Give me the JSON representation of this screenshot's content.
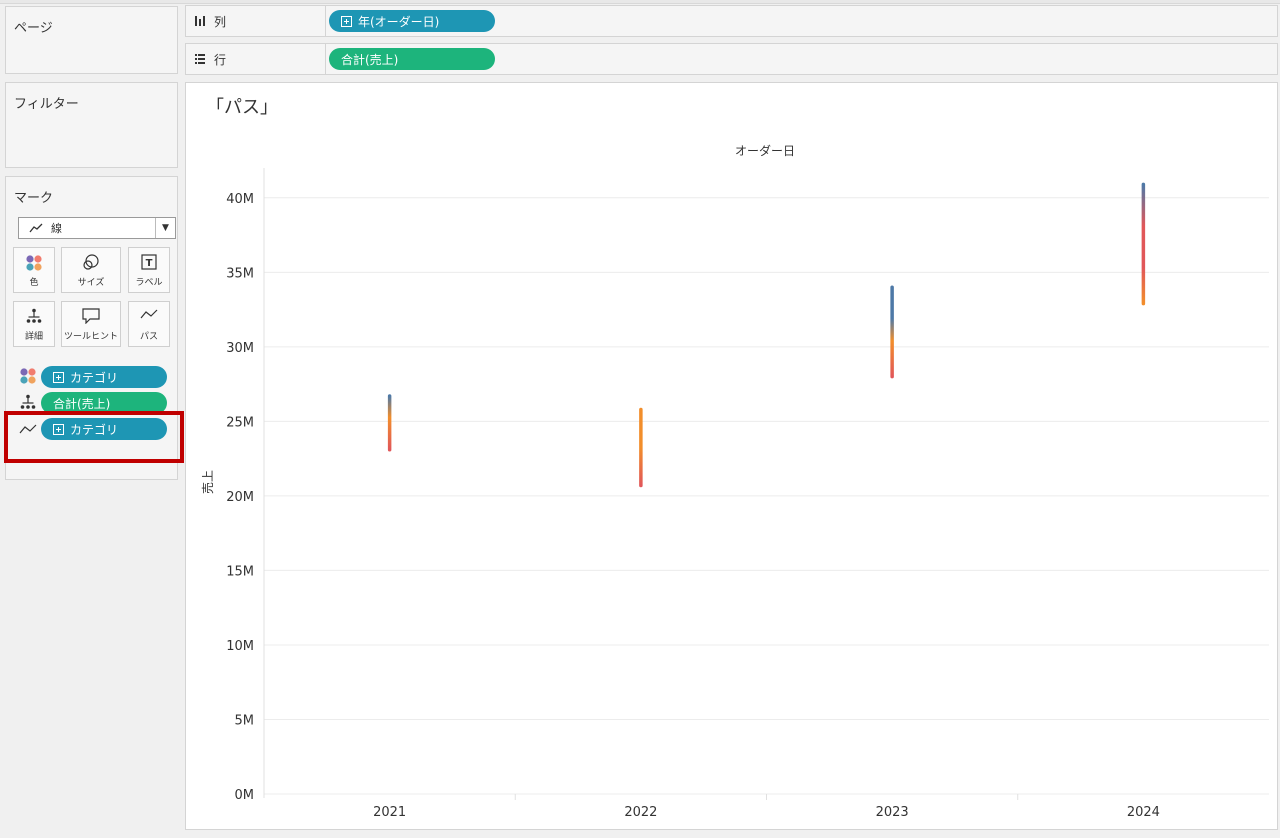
{
  "pages_card": {
    "title": "ページ"
  },
  "filters_card": {
    "title": "フィルター"
  },
  "marks_card": {
    "title": "マーク",
    "mark_type": "線",
    "buttons": [
      {
        "label": "色",
        "icon": "color-dots-icon"
      },
      {
        "label": "サイズ",
        "icon": "size-icon"
      },
      {
        "label": "ラベル",
        "icon": "label-icon"
      },
      {
        "label": "詳細",
        "icon": "detail-icon"
      },
      {
        "label": "ツールヒント",
        "icon": "tooltip-icon"
      },
      {
        "label": "パス",
        "icon": "path-icon"
      }
    ],
    "fields": [
      {
        "role": "color",
        "label": "カテゴリ",
        "pill_color": "#1e96b4"
      },
      {
        "role": "detail",
        "label": "合計(売上)",
        "pill_color": "#1db47c"
      },
      {
        "role": "path",
        "label": "カテゴリ",
        "pill_color": "#1e96b4"
      }
    ]
  },
  "columns_shelf": {
    "label": "列",
    "pill": "年(オーダー日)"
  },
  "rows_shelf": {
    "label": "行",
    "pill": "合計(売上)"
  },
  "sheet": {
    "title": "「パス」"
  },
  "chart_data": {
    "type": "line",
    "title": "",
    "x_header": "オーダー日",
    "ylabel": "売上",
    "categories": [
      "2021",
      "2022",
      "2023",
      "2024"
    ],
    "ylim": [
      0,
      40000000
    ],
    "yticks": [
      "0M",
      "5M",
      "10M",
      "15M",
      "20M",
      "25M",
      "30M",
      "35M",
      "40M"
    ],
    "ytick_values": [
      0,
      5000000,
      10000000,
      15000000,
      20000000,
      25000000,
      30000000,
      35000000,
      40000000
    ],
    "ranges": [
      {
        "year": "2021",
        "min": 23100000,
        "max": 26700000
      },
      {
        "year": "2022",
        "min": 20700000,
        "max": 25800000
      },
      {
        "year": "2023",
        "min": 28000000,
        "max": 34000000
      },
      {
        "year": "2024",
        "min": 32900000,
        "max": 40900000
      }
    ],
    "colors": [
      "#4e79a7",
      "#e15759",
      "#f28e2b"
    ]
  }
}
